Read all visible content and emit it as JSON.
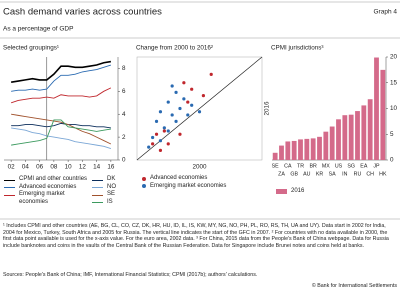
{
  "header": {
    "title": "Cash demand varies across countries",
    "subtitle": "As a percentage of GDP",
    "graph_label": "Graph 4"
  },
  "chart_data": [
    {
      "type": "line",
      "title": "Selected groupings¹",
      "x": [
        2002,
        2003,
        2004,
        2005,
        2006,
        2007,
        2008,
        2009,
        2010,
        2011,
        2012,
        2013,
        2014,
        2015,
        2016
      ],
      "xlim": [
        2001,
        2017
      ],
      "xticks": [
        {
          "value": 2002,
          "label": "02"
        },
        {
          "value": 2004,
          "label": "04"
        },
        {
          "value": 2006,
          "label": "06"
        },
        {
          "value": 2008,
          "label": "08"
        },
        {
          "value": 2010,
          "label": "10"
        },
        {
          "value": 2012,
          "label": "12"
        },
        {
          "value": 2014,
          "label": "14"
        },
        {
          "value": 2016,
          "label": "16"
        }
      ],
      "ylim": [
        0,
        9
      ],
      "yticks": [
        0,
        2,
        4,
        6,
        8
      ],
      "vline": 2007,
      "series": [
        {
          "name": "CPMI and other countries",
          "color": "#000000",
          "values": [
            6.8,
            6.9,
            7.0,
            7.1,
            7.0,
            7.0,
            7.5,
            8.2,
            8.2,
            8.1,
            8.1,
            8.2,
            8.3,
            8.5,
            8.6
          ]
        },
        {
          "name": "Advanced economies",
          "color": "#2a6ab1",
          "values": [
            6.0,
            6.1,
            6.1,
            6.2,
            6.1,
            6.2,
            6.9,
            7.4,
            7.4,
            7.5,
            7.7,
            7.8,
            7.9,
            8.1,
            8.3
          ]
        },
        {
          "name": "Emerging market economies",
          "color": "#c0272d",
          "values": [
            5.0,
            5.2,
            5.3,
            5.4,
            5.4,
            5.5,
            5.4,
            5.7,
            5.6,
            5.6,
            5.6,
            5.5,
            5.6,
            6.0,
            6.3
          ]
        },
        {
          "name": "DK",
          "color": "#0b2d5b",
          "values": [
            3.0,
            3.0,
            3.1,
            3.1,
            3.0,
            2.9,
            3.0,
            3.2,
            3.1,
            3.1,
            3.0,
            3.0,
            2.9,
            2.9,
            2.8
          ]
        },
        {
          "name": "NO",
          "color": "#7ba7d6",
          "values": [
            2.8,
            2.7,
            2.6,
            2.4,
            2.3,
            2.1,
            2.0,
            1.9,
            1.8,
            1.6,
            1.5,
            1.4,
            1.3,
            1.2,
            1.0
          ]
        },
        {
          "name": "SE",
          "color": "#a0522d",
          "values": [
            4.0,
            3.9,
            3.8,
            3.7,
            3.6,
            3.5,
            3.4,
            3.3,
            3.1,
            2.8,
            2.5,
            2.3,
            2.0,
            1.7,
            1.4
          ]
        },
        {
          "name": "IS",
          "color": "#3c9a5f",
          "values": [
            1.3,
            1.4,
            1.5,
            1.6,
            1.7,
            1.9,
            3.5,
            3.5,
            2.9,
            2.8,
            2.7,
            2.6,
            2.5,
            2.6,
            2.7
          ]
        }
      ]
    },
    {
      "type": "scatter",
      "title": "Change from 2000 to 2016²",
      "xlabel": "2000",
      "ylabel": "2016",
      "xlim": [
        0,
        16
      ],
      "ylim": [
        0,
        16
      ],
      "diagonal": true,
      "series": [
        {
          "name": "Advanced economies",
          "color": "#c0272d",
          "x": [
            9.5,
            6.0,
            7.0,
            2.5,
            3.5,
            5.5,
            4.0,
            3.0,
            8.5,
            6.5,
            2.0
          ],
          "values": [
            13.3,
            12.0,
            11.0,
            4.0,
            4.5,
            4.0,
            2.5,
            1.5,
            10.0,
            9.0,
            2.5
          ]
        },
        {
          "name": "Emerging market economies",
          "color": "#2a6ab1",
          "x": [
            2.5,
            3.0,
            4.0,
            4.5,
            5.0,
            5.5,
            3.5,
            6.0,
            2.0,
            4.0,
            5.0,
            6.5,
            7.0,
            3.0,
            1.5,
            8.0,
            4.5
          ],
          "values": [
            6.0,
            7.5,
            9.0,
            7.0,
            10.5,
            8.0,
            5.0,
            9.5,
            3.5,
            4.5,
            6.0,
            7.0,
            8.5,
            3.0,
            2.0,
            7.5,
            11.5
          ]
        }
      ]
    },
    {
      "type": "bar",
      "title": "CPMI jurisdictions³",
      "categories": [
        "SE",
        "ZA",
        "CA",
        "GB",
        "TR",
        "AU",
        "BR",
        "KR",
        "MX",
        "SA",
        "US",
        "IN",
        "SG",
        "RU",
        "EA",
        "CH",
        "JP",
        "HK"
      ],
      "ylim": [
        0,
        20
      ],
      "yticks": [
        0,
        5,
        10,
        15,
        20
      ],
      "series": [
        {
          "name": "2016",
          "color": "#d46a8a",
          "values": [
            1.4,
            2.8,
            3.6,
            3.7,
            4.0,
            4.1,
            4.2,
            4.5,
            5.5,
            6.5,
            7.9,
            8.7,
            8.8,
            9.5,
            10.6,
            11.8,
            19.9,
            17.5
          ]
        }
      ]
    }
  ],
  "footnotes": "¹ Includes CPMI and other countries (AE, BG, CL, CO, CZ, DK, HR, HU, ID, IL, IS, KW, MY, NG, NO, PH, PL, RO, RS, TH, UA and UY). Data start in 2002 for India, 2004 for Mexico, Turkey, South Africa and 2005 for Russia. The vertical line indicates the start of the GFC in 2007.   ² For countries with no data available in 2000, the first data point available is used for the x-axis value. For the euro area, 2002 data.   ³ For China, 2015 data from the People's Bank of China webpage. Data for Russia include banknotes and coins in the vaults of the Central Bank of the Russian Federation. Data for Singapore include Brunei notes and coins held at banks.",
  "sources": "Sources: People's Bank of China; IMF, International Financial Statistics; CPMI (2017b); authors' calculations.",
  "copyright": "© Bank for International Settlements"
}
